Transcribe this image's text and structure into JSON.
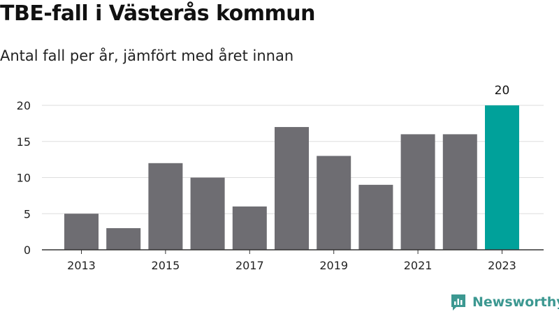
{
  "header": {
    "title": "TBE-fall i Västerås kommun",
    "subtitle": "Antal fall per år, jämfört med året innan"
  },
  "brand": {
    "name": "Newsworthy",
    "color": "#3c9891",
    "icon": "newsworthy-logo-icon"
  },
  "colors": {
    "bar": "#6e6d72",
    "highlight": "#00a19a",
    "grid": "#dddddd",
    "axis": "#333333"
  },
  "chart_data": {
    "type": "bar",
    "categories": [
      "2013",
      "2014",
      "2015",
      "2016",
      "2017",
      "2018",
      "2019",
      "2020",
      "2021",
      "2022",
      "2023"
    ],
    "values": [
      5,
      3,
      12,
      10,
      6,
      17,
      13,
      9,
      16,
      16,
      20
    ],
    "highlight_index": 10,
    "highlight_label": "20",
    "xtick_labels": [
      "2013",
      "2015",
      "2017",
      "2019",
      "2021",
      "2023"
    ],
    "ylim": [
      0,
      20
    ],
    "yticks": [
      0,
      5,
      10,
      15,
      20
    ],
    "grid": true,
    "xlabel": "",
    "ylabel": ""
  }
}
